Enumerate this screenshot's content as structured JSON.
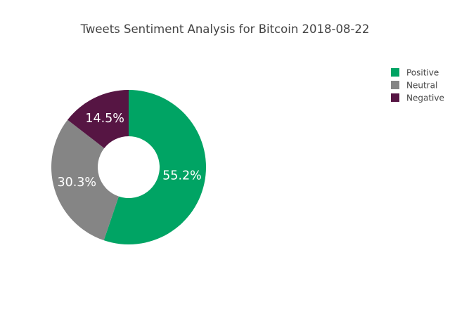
{
  "chart_data": {
    "type": "pie",
    "title": "Tweets Sentiment Analysis for Bitcoin 2018-08-22",
    "hole": 0.4,
    "legend_position": "top-right",
    "slices": [
      {
        "label": "Positive",
        "value": 55.2,
        "text": "55.2%",
        "color": "#00a464"
      },
      {
        "label": "Neutral",
        "value": 30.3,
        "text": "30.3%",
        "color": "#858585"
      },
      {
        "label": "Negative",
        "value": 14.5,
        "text": "14.5%",
        "color": "#561543"
      }
    ]
  }
}
